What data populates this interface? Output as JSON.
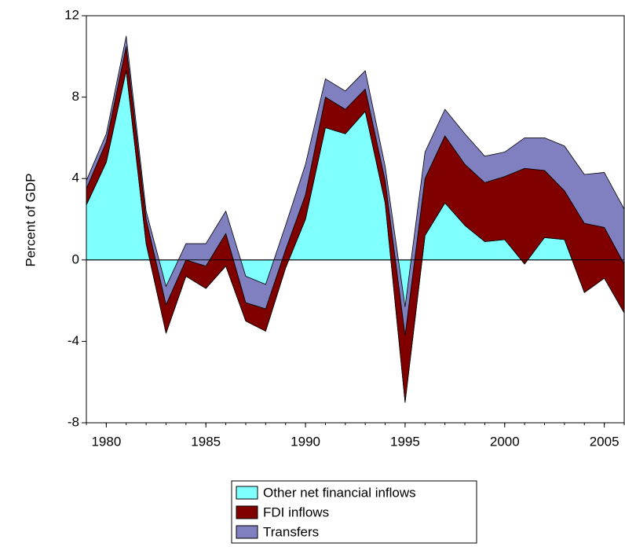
{
  "chart_data": {
    "type": "stacked_area",
    "y_label": "Percent of GDP",
    "x": [
      1979,
      1980,
      1981,
      1982,
      1983,
      1984,
      1985,
      1986,
      1987,
      1988,
      1989,
      1990,
      1991,
      1992,
      1993,
      1994,
      1995,
      1996,
      1997,
      1998,
      1999,
      2000,
      2001,
      2002,
      2003,
      2004,
      2005,
      2006
    ],
    "xlim": [
      1979,
      2006
    ],
    "xticks": [
      1980,
      1985,
      1990,
      1995,
      2000,
      2005
    ],
    "ylim": [
      -8,
      12
    ],
    "yticks": [
      -8,
      -4,
      0,
      4,
      8,
      12
    ],
    "series": [
      {
        "name": "Other net financial inflows",
        "color": "#80ffff",
        "values": [
          2.7,
          4.8,
          9.3,
          0.8,
          -3.6,
          -0.8,
          -1.4,
          -0.3,
          -3.0,
          -3.5,
          -0.4,
          2.0,
          6.5,
          6.2,
          7.3,
          2.8,
          -7.0,
          1.2,
          2.8,
          1.7,
          0.9,
          1.0,
          -0.2,
          1.1,
          1.0,
          -1.6,
          -0.9,
          -2.6
        ]
      },
      {
        "name": "FDI inflows",
        "color": "#800000",
        "values": [
          0.8,
          1.0,
          1.2,
          1.2,
          1.4,
          0.8,
          1.1,
          1.6,
          0.9,
          1.1,
          0.9,
          1.2,
          1.5,
          1.2,
          1.1,
          1.1,
          3.3,
          2.8,
          3.3,
          3.0,
          2.9,
          3.1,
          4.7,
          3.3,
          2.4,
          3.4,
          2.5,
          2.4
        ]
      },
      {
        "name": "Transfers",
        "color": "#8080c0",
        "values": [
          0.4,
          0.4,
          0.5,
          0.4,
          0.9,
          0.8,
          1.1,
          1.1,
          1.3,
          1.2,
          1.2,
          1.5,
          0.9,
          0.9,
          0.9,
          0.7,
          1.4,
          1.3,
          1.3,
          1.5,
          1.3,
          1.2,
          1.5,
          1.6,
          2.2,
          2.4,
          2.7,
          2.7
        ]
      }
    ]
  }
}
